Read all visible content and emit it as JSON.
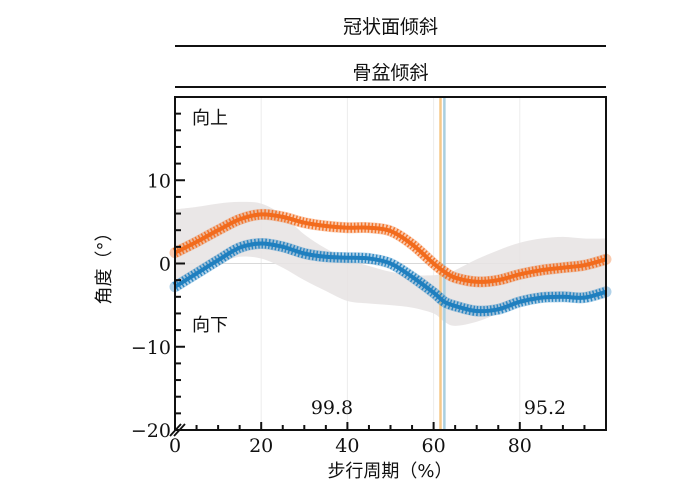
{
  "header": {
    "title": "冠状面倾斜",
    "subtitle": "骨盆倾斜"
  },
  "chart_data": {
    "type": "line",
    "title": "冠状面倾斜",
    "subtitle": "骨盆倾斜",
    "xlabel": "步行周期（%）",
    "ylabel": "角度（°）",
    "xlim": [
      0,
      100
    ],
    "ylim": [
      -20,
      20
    ],
    "xticks": [
      0,
      20,
      40,
      60,
      80
    ],
    "xtick_labels": [
      "0",
      "20",
      "40",
      "60",
      "80"
    ],
    "yticks": [
      -20,
      -10,
      0,
      10
    ],
    "ytick_labels": [
      "−20",
      "−10",
      "0",
      "10"
    ],
    "grid": true,
    "annotations": {
      "up": "向上",
      "down": "向下",
      "left_value": "99.8",
      "right_value": "95.2"
    },
    "colors": {
      "orange": "#f26b1d",
      "blue": "#1f7fbf",
      "band": "#e6e3e3"
    },
    "x": [
      0,
      5,
      10,
      15,
      20,
      25,
      30,
      35,
      40,
      45,
      50,
      55,
      60,
      62.5,
      65,
      70,
      75,
      80,
      85,
      90,
      95,
      100
    ],
    "series": [
      {
        "name": "orange",
        "values": [
          1.3,
          2.6,
          4.0,
          5.3,
          5.9,
          5.6,
          4.9,
          4.5,
          4.3,
          4.3,
          3.9,
          2.3,
          0.0,
          -1.0,
          -1.7,
          -2.2,
          -2.0,
          -1.3,
          -0.8,
          -0.5,
          -0.2,
          0.5
        ]
      },
      {
        "name": "blue",
        "values": [
          -2.8,
          -1.2,
          0.4,
          1.9,
          2.4,
          2.0,
          1.2,
          0.8,
          0.7,
          0.6,
          0.0,
          -1.6,
          -3.5,
          -4.6,
          -5.1,
          -5.7,
          -5.5,
          -4.6,
          -4.1,
          -4.0,
          -4.1,
          -3.4
        ]
      },
      {
        "name": "normal-range-upper",
        "values": [
          6.5,
          6.8,
          7.2,
          7.4,
          7.2,
          5.8,
          3.5,
          1.8,
          0.5,
          -0.3,
          -1.0,
          -1.4,
          -1.4,
          -1.2,
          -0.8,
          0.5,
          1.6,
          2.5,
          3.0,
          3.2,
          3.0,
          3.0
        ]
      },
      {
        "name": "normal-range-lower",
        "values": [
          -2.5,
          -1.0,
          0.0,
          0.8,
          0.6,
          -0.5,
          -2.0,
          -3.3,
          -4.5,
          -4.8,
          -5.0,
          -5.3,
          -6.0,
          -7.0,
          -7.5,
          -7.0,
          -6.0,
          -5.0,
          -4.5,
          -4.3,
          -4.2,
          -4.2
        ]
      }
    ],
    "vlines": [
      {
        "name": "orange",
        "x": 61.6
      },
      {
        "name": "blue",
        "x": 62.5
      }
    ]
  }
}
